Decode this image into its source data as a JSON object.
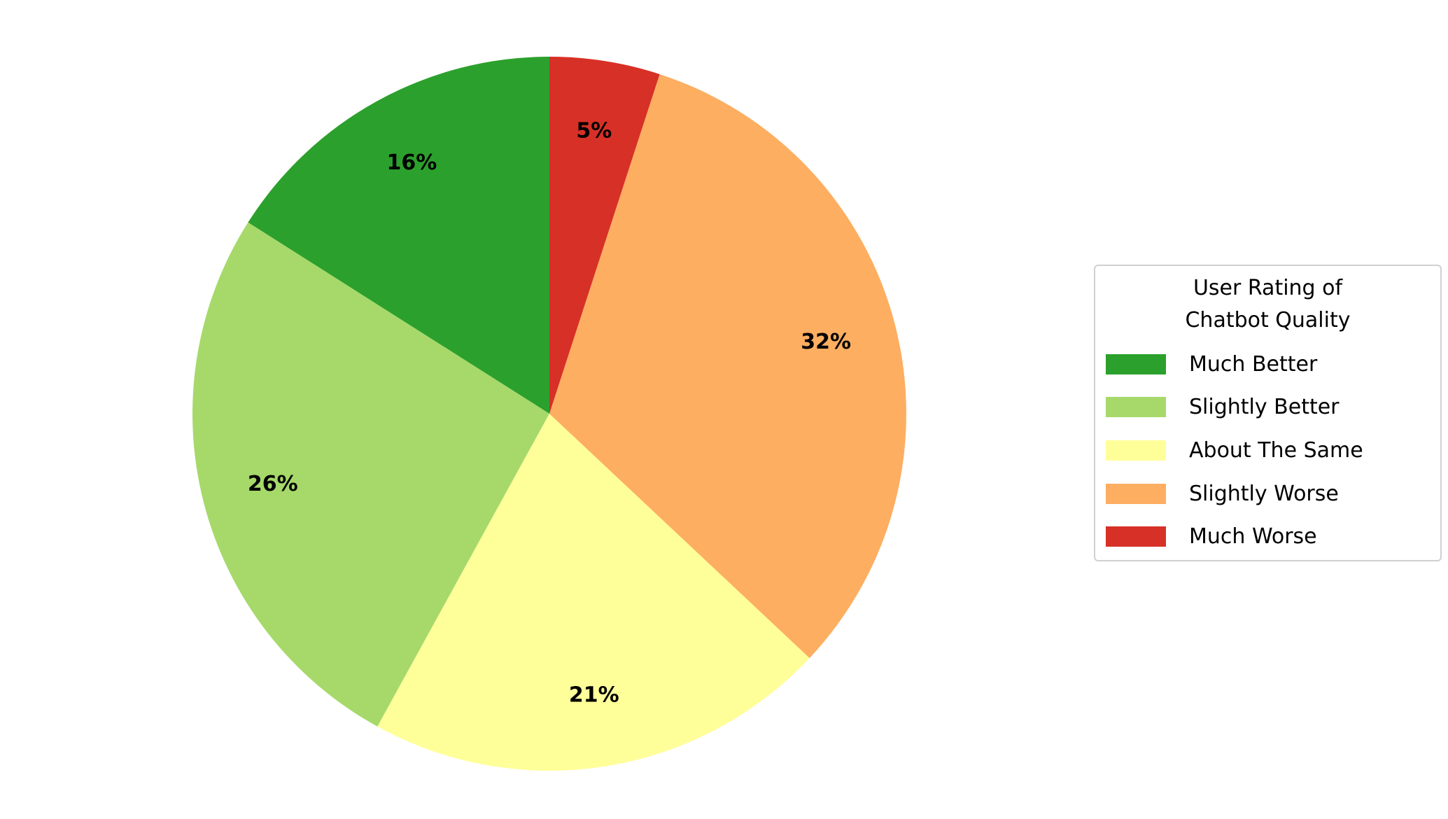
{
  "chart_data": {
    "type": "pie",
    "categories": [
      "Much Better",
      "Slightly Better",
      "About The Same",
      "Slightly Worse",
      "Much Worse"
    ],
    "values": [
      16,
      26,
      21,
      32,
      5
    ],
    "value_labels": [
      "16%",
      "26%",
      "21%",
      "32%",
      "5%"
    ],
    "colors": [
      "#2ca02c",
      "#a6d96a",
      "#ffff99",
      "#fdae61",
      "#d73027"
    ],
    "legend_title": "User Rating of\nChatbot Quality",
    "legend_position": "right"
  }
}
